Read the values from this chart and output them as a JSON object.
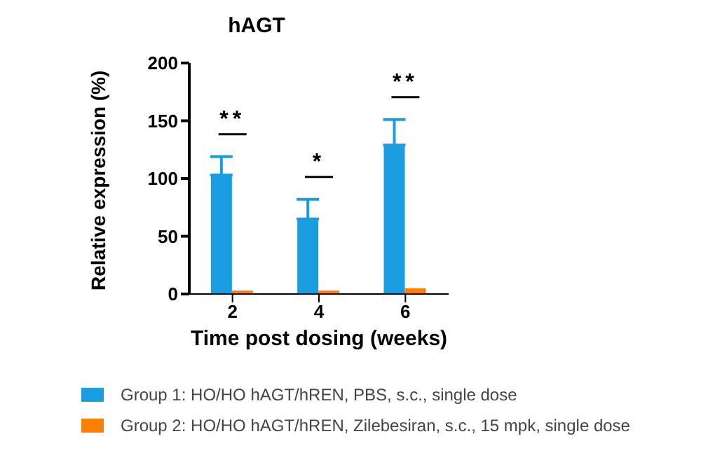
{
  "chart_data": {
    "type": "bar",
    "title": "hAGT",
    "xlabel": "Time post dosing (weeks)",
    "ylabel": "Relative expression (%)",
    "categories": [
      "2",
      "4",
      "6"
    ],
    "series": [
      {
        "name": "Group 1: HO/HO hAGT/hREN, PBS, s.c., single dose",
        "color": "#1a9de0",
        "values": [
          103,
          65,
          129
        ],
        "errors": [
          [
            103,
            119
          ],
          [
            65,
            82
          ],
          [
            129,
            151
          ]
        ]
      },
      {
        "name": "Group 2: HO/HO hAGT/hREN, Zilebesiran, s.c., 15 mpk, single dose",
        "color": "#ff8000",
        "values": [
          3,
          3,
          5
        ]
      }
    ],
    "ylim": [
      0,
      200
    ],
    "yticks": [
      0,
      50,
      100,
      150,
      200
    ],
    "grid": false,
    "legend": "bottom",
    "annotations": [
      "**",
      "*",
      "**"
    ]
  }
}
